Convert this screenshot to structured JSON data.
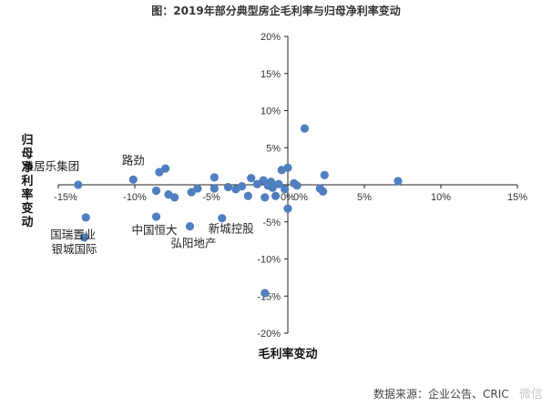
{
  "chart_data": {
    "type": "scatter",
    "title": "图：2019年部分典型房企毛利率与归母净利率变动",
    "xlabel": "毛利率变动",
    "ylabel": "归母净利率变动",
    "xlim": [
      -0.15,
      0.15
    ],
    "ylim": [
      -0.2,
      0.2
    ],
    "x_ticks": [
      "-15%",
      "-10%",
      "-5%",
      "0%",
      "5%",
      "10%",
      "15%"
    ],
    "y_ticks": [
      "20%",
      "15%",
      "10%",
      "5%",
      "0%",
      "-5%",
      "-10%",
      "-15%",
      "-20%"
    ],
    "marker_color": "#4f7fbf",
    "points": [
      {
        "x": -0.137,
        "y": 0.0
      },
      {
        "x": -0.132,
        "y": -0.044
      },
      {
        "x": -0.133,
        "y": -0.071
      },
      {
        "x": -0.101,
        "y": 0.007
      },
      {
        "x": -0.084,
        "y": 0.017
      },
      {
        "x": -0.08,
        "y": 0.022
      },
      {
        "x": -0.086,
        "y": -0.008
      },
      {
        "x": -0.078,
        "y": -0.013
      },
      {
        "x": -0.074,
        "y": -0.017
      },
      {
        "x": -0.086,
        "y": -0.043
      },
      {
        "x": -0.063,
        "y": -0.01
      },
      {
        "x": -0.059,
        "y": -0.005
      },
      {
        "x": -0.064,
        "y": -0.056
      },
      {
        "x": -0.048,
        "y": 0.01
      },
      {
        "x": -0.048,
        "y": -0.005
      },
      {
        "x": -0.043,
        "y": -0.045
      },
      {
        "x": -0.039,
        "y": -0.003
      },
      {
        "x": -0.034,
        "y": -0.006
      },
      {
        "x": -0.03,
        "y": -0.002
      },
      {
        "x": -0.026,
        "y": -0.015
      },
      {
        "x": -0.024,
        "y": 0.009
      },
      {
        "x": -0.02,
        "y": 0.001
      },
      {
        "x": -0.016,
        "y": 0.006
      },
      {
        "x": -0.015,
        "y": -0.017
      },
      {
        "x": -0.013,
        "y": -0.001
      },
      {
        "x": -0.011,
        "y": 0.004
      },
      {
        "x": -0.01,
        "y": -0.004
      },
      {
        "x": -0.008,
        "y": -0.015
      },
      {
        "x": -0.006,
        "y": 0.001
      },
      {
        "x": -0.004,
        "y": 0.02
      },
      {
        "x": -0.002,
        "y": -0.006
      },
      {
        "x": 0.0,
        "y": 0.023
      },
      {
        "x": 0.0,
        "y": -0.032
      },
      {
        "x": 0.004,
        "y": 0.002
      },
      {
        "x": 0.006,
        "y": -0.001
      },
      {
        "x": 0.011,
        "y": 0.076
      },
      {
        "x": 0.021,
        "y": -0.005
      },
      {
        "x": 0.023,
        "y": -0.009
      },
      {
        "x": 0.024,
        "y": 0.013
      },
      {
        "x": 0.072,
        "y": 0.005
      },
      {
        "x": -0.015,
        "y": -0.146
      }
    ],
    "annotations": [
      {
        "text": "雅居乐集团",
        "x": -0.137,
        "y": 0.0
      },
      {
        "text": "路劲",
        "x": -0.101,
        "y": 0.007
      },
      {
        "text": "国瑞置业",
        "x": -0.132,
        "y": -0.044
      },
      {
        "text": "银城国际",
        "x": -0.133,
        "y": -0.071
      },
      {
        "text": "中国恒大",
        "x": -0.086,
        "y": -0.043
      },
      {
        "text": "弘阳地产",
        "x": -0.064,
        "y": -0.056
      },
      {
        "text": "新城控股",
        "x": -0.043,
        "y": -0.045
      }
    ]
  },
  "footer": {
    "source": "数据来源：企业公告、CRIC",
    "watermark": "微信"
  }
}
